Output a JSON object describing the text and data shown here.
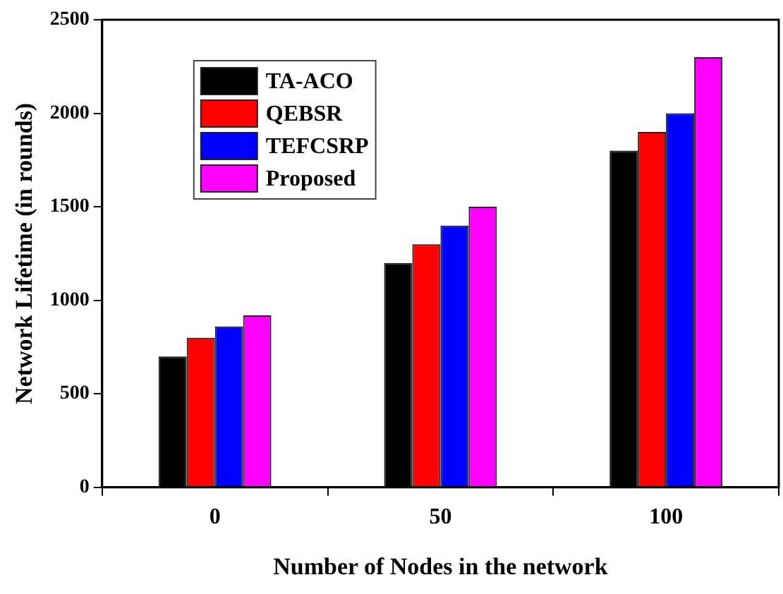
{
  "chart_data": {
    "type": "bar",
    "xlabel": "Number of Nodes in the network",
    "ylabel": "Network Lifetime (in rounds)",
    "categories": [
      "0",
      "50",
      "100"
    ],
    "series": [
      {
        "name": "TA-ACO",
        "color": "#000000",
        "values": [
          700,
          1200,
          1800
        ]
      },
      {
        "name": "QEBSR",
        "color": "#ff0000",
        "values": [
          800,
          1300,
          1900
        ]
      },
      {
        "name": "TEFCSRP",
        "color": "#0000ff",
        "values": [
          860,
          1400,
          2000
        ]
      },
      {
        "name": "Proposed",
        "color": "#ff00ff",
        "values": [
          920,
          1500,
          2300
        ]
      }
    ],
    "ylim": [
      0,
      2500
    ],
    "yticks": [
      0,
      500,
      1000,
      1500,
      2000,
      2500
    ],
    "grid": false,
    "legend": "top left"
  }
}
